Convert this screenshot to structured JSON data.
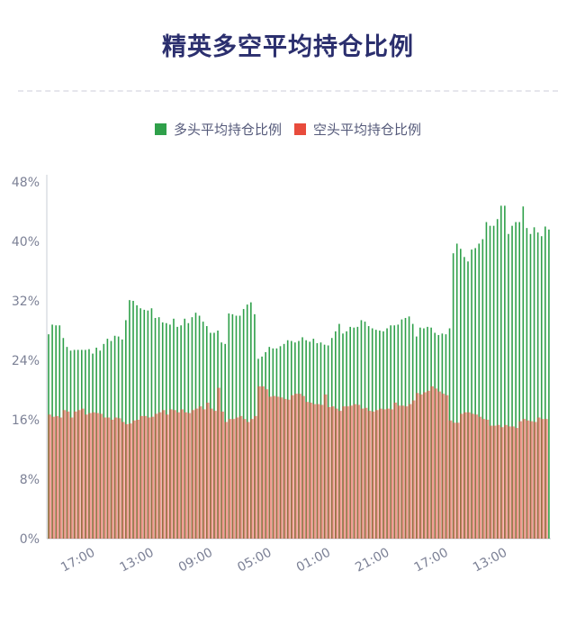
{
  "page": {
    "title": "精英多空平均持仓比例"
  },
  "legend": {
    "long": {
      "label": "多头平均持仓比例",
      "color": "#2fa04a"
    },
    "short": {
      "label": "空头平均持仓比例",
      "color": "#e84b3c"
    }
  },
  "chart_data": {
    "type": "bar",
    "title": "精英多空平均持仓比例",
    "legend_position": "top-center",
    "grid": false,
    "ylim": [
      0,
      48
    ],
    "y_ticks": [
      "0%",
      "8%",
      "16%",
      "24%",
      "32%",
      "40%",
      "48%"
    ],
    "y_tick_values": [
      0,
      8,
      16,
      24,
      32,
      40,
      48
    ],
    "x_tick_labels": [
      "17:00",
      "13:00",
      "09:00",
      "05:00",
      "01:00",
      "21:00",
      "17:00",
      "13:00"
    ],
    "x_tick_indices": [
      8,
      24,
      40,
      56,
      72,
      88,
      104,
      120
    ],
    "series": [
      {
        "name": "多头平均持仓比例",
        "color": "#2fa04a",
        "values": [
          27.5,
          28.8,
          28.7,
          28.7,
          27,
          25.8,
          25.3,
          25.4,
          25.4,
          25.4,
          25.4,
          25.5,
          24.9,
          25.7,
          25.3,
          26.2,
          26.9,
          26.6,
          27.3,
          27.2,
          26.8,
          29.4,
          32.1,
          32,
          31.4,
          31,
          30.8,
          30.7,
          31,
          29.7,
          29.8,
          29.1,
          29,
          28.8,
          29.6,
          28.5,
          28.7,
          29.6,
          29,
          29.8,
          30.4,
          30,
          29.2,
          28.6,
          27.7,
          27.7,
          28,
          26.4,
          26.2,
          30.3,
          30.2,
          30,
          30,
          30.9,
          31.5,
          31.8,
          30.2,
          24.2,
          24.5,
          25.1,
          25.8,
          25.6,
          25.6,
          25.9,
          26.2,
          26.7,
          26.6,
          26.4,
          26.6,
          27.1,
          26.7,
          26.5,
          26.9,
          26.3,
          26.4,
          26.1,
          26,
          27,
          27.9,
          28.9,
          27.6,
          27.9,
          28.5,
          28.4,
          28.5,
          29.4,
          29.2,
          28.6,
          28.3,
          28.1,
          28,
          27.9,
          28.3,
          28.7,
          28.7,
          28.8,
          29.5,
          29.7,
          29.9,
          28.9,
          27.2,
          28.4,
          28.3,
          28.5,
          28.4,
          27.7,
          27.4,
          27.6,
          27.5,
          28.3,
          38.4,
          39.7,
          39,
          37.9,
          37.3,
          38.9,
          39.1,
          39.7,
          40.3,
          42.6,
          42.1,
          42.1,
          43,
          44.8,
          44.8,
          41,
          42.1,
          42.6,
          42.6,
          44.7,
          41.8,
          41,
          41.9,
          41.2,
          40.7,
          42,
          41.6
        ]
      },
      {
        "name": "空头平均持仓比例",
        "color": "#e84b3c",
        "values": [
          16.7,
          16.4,
          16.5,
          16.3,
          17.3,
          17.1,
          16.3,
          17.1,
          17.3,
          17.5,
          16.7,
          16.9,
          17,
          16.9,
          16.8,
          16.3,
          16.3,
          16,
          16.3,
          16.2,
          15.7,
          15.4,
          15.5,
          15.9,
          16,
          16.5,
          16.5,
          16.3,
          16.4,
          16.8,
          17,
          17.3,
          16.7,
          17.4,
          17.3,
          17,
          17.4,
          17,
          16.9,
          17.3,
          17.5,
          17.8,
          17.4,
          18.3,
          17.5,
          17.2,
          20.3,
          17.1,
          15.7,
          16.1,
          16.1,
          16.3,
          16.5,
          16.1,
          15.7,
          16.1,
          16.5,
          20.5,
          20.5,
          20.1,
          19.1,
          19.2,
          19.1,
          19,
          18.8,
          18.7,
          19.3,
          19.5,
          19.5,
          19.2,
          18.4,
          18.3,
          18.1,
          18.1,
          18,
          19.4,
          17.7,
          17.8,
          17.5,
          17.2,
          17.8,
          17.8,
          17.9,
          18.1,
          18,
          17.5,
          17.6,
          17.2,
          17.1,
          17.3,
          17.5,
          17.4,
          17.5,
          17.4,
          18.3,
          17.9,
          17.9,
          17.8,
          18.1,
          18.6,
          19.6,
          19.4,
          19.7,
          19.9,
          20.5,
          20.2,
          19.8,
          19.5,
          19.3,
          15.9,
          15.6,
          15.6,
          16.8,
          17,
          17,
          16.8,
          16.7,
          16.4,
          16.1,
          16,
          15.2,
          15.2,
          15.3,
          15,
          15.3,
          15.1,
          15.1,
          14.9,
          15.8,
          16.1,
          15.9,
          15.8,
          15.7,
          16.3,
          16.1,
          16.1
        ]
      }
    ]
  }
}
